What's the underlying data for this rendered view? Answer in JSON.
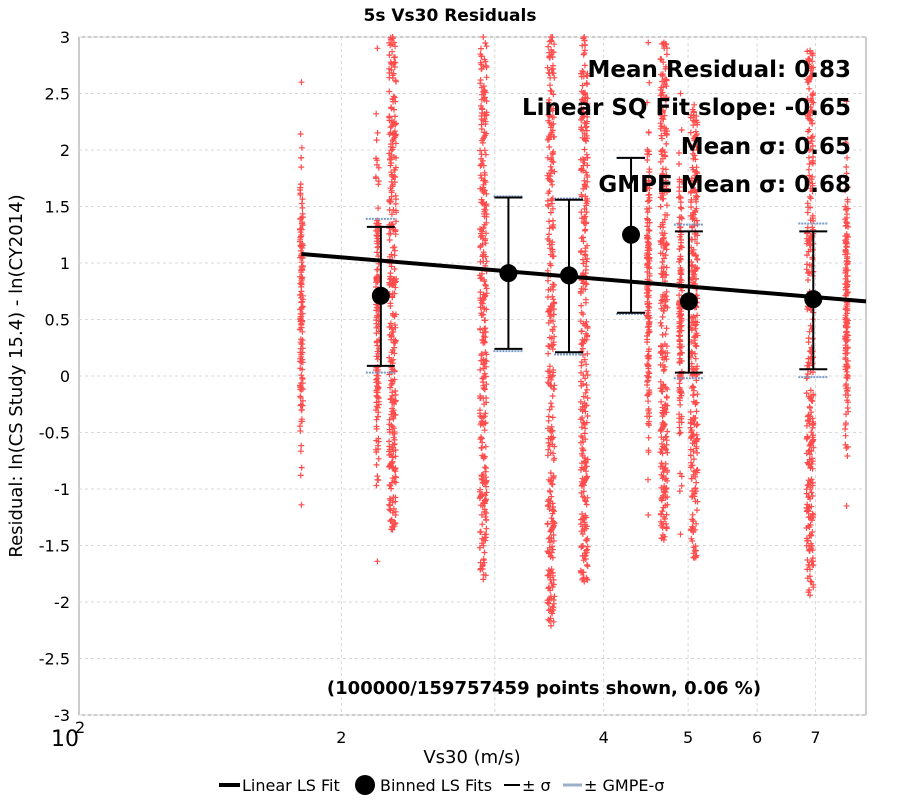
{
  "chart_data": {
    "type": "scatter",
    "title": "5s Vs30 Residuals",
    "xlabel": "Vs30 (m/s)",
    "ylabel": "Residual: ln(CS Study 15.4) - ln(CY2014)",
    "xscale": "log",
    "xlim": [
      100,
      800
    ],
    "ylim": [
      -3,
      3
    ],
    "grid": true,
    "x_major_tick": {
      "base": "10",
      "exponent": "2"
    },
    "x_minor_ticks": [
      {
        "label": "2",
        "value": 200
      },
      {
        "label": "",
        "value": 300
      },
      {
        "label": "4",
        "value": 400
      },
      {
        "label": "5",
        "value": 500
      },
      {
        "label": "6",
        "value": 600
      },
      {
        "label": "7",
        "value": 700
      }
    ],
    "y_ticks": [
      {
        "label": "3",
        "value": 3
      },
      {
        "label": "2.5",
        "value": 2.5
      },
      {
        "label": "2",
        "value": 2
      },
      {
        "label": "1.5",
        "value": 1.5
      },
      {
        "label": "1",
        "value": 1
      },
      {
        "label": "0.5",
        "value": 0.5
      },
      {
        "label": "0",
        "value": 0
      },
      {
        "label": "-0.5",
        "value": -0.5
      },
      {
        "label": "-1",
        "value": -1
      },
      {
        "label": "-1.5",
        "value": -1.5
      },
      {
        "label": "-2",
        "value": -2
      },
      {
        "label": "-2.5",
        "value": -2.5
      },
      {
        "label": "-3",
        "value": -3
      }
    ],
    "scatter_columns": [
      {
        "vs30": 180,
        "ymin": -1.14,
        "ymax": 2.6,
        "density": 0.35
      },
      {
        "vs30": 220,
        "ymin": -1.64,
        "ymax": 2.9,
        "density": 0.35
      },
      {
        "vs30": 229,
        "ymin": -1.36,
        "ymax": 3.0,
        "density": 1.0
      },
      {
        "vs30": 291,
        "ymin": -1.8,
        "ymax": 3.0,
        "density": 1.0
      },
      {
        "vs30": 348,
        "ymin": -2.21,
        "ymax": 3.0,
        "density": 1.0
      },
      {
        "vs30": 380,
        "ymin": -1.82,
        "ymax": 3.0,
        "density": 1.0
      },
      {
        "vs30": 450,
        "ymin": -1.23,
        "ymax": 2.95,
        "density": 0.4
      },
      {
        "vs30": 469,
        "ymin": -1.45,
        "ymax": 2.95,
        "density": 0.9
      },
      {
        "vs30": 490,
        "ymin": -1.4,
        "ymax": 2.5,
        "density": 0.4
      },
      {
        "vs30": 508,
        "ymin": -1.61,
        "ymax": 2.4,
        "density": 0.9
      },
      {
        "vs30": 690,
        "ymin": -1.94,
        "ymax": 2.88,
        "density": 1.0
      },
      {
        "vs30": 760,
        "ymin": -1.15,
        "ymax": 2.43,
        "density": 0.4
      }
    ],
    "series": [
      {
        "name": "Linear LS Fit",
        "type": "line",
        "points": [
          [
            180,
            1.08
          ],
          [
            800,
            0.66
          ]
        ]
      },
      {
        "name": "Binned LS Fits",
        "type": "points",
        "x": [
          222,
          311,
          365,
          430,
          501,
          696
        ],
        "y": [
          0.71,
          0.91,
          0.89,
          1.25,
          0.66,
          0.68
        ]
      },
      {
        "name": "± σ",
        "type": "errorbar",
        "x": [
          222,
          311,
          365,
          430,
          501,
          696
        ],
        "low": [
          0.09,
          0.24,
          0.21,
          0.56,
          0.03,
          0.06
        ],
        "high": [
          1.32,
          1.58,
          1.56,
          1.93,
          1.28,
          1.28
        ]
      },
      {
        "name": "± GMPE-σ",
        "type": "errorbar",
        "x": [
          222,
          311,
          365,
          430,
          501,
          696
        ],
        "low": [
          0.03,
          0.22,
          0.19,
          0.55,
          -0.02,
          -0.01
        ],
        "high": [
          1.39,
          1.59,
          1.57,
          1.93,
          1.34,
          1.35
        ]
      }
    ],
    "annotations": [
      "Mean Residual: 0.83",
      "Linear SQ Fit slope: -0.65",
      "Mean σ: 0.65",
      "GMPE Mean σ: 0.68"
    ],
    "note": "(100000/159757459 points shown, 0.06 %)",
    "legend": {
      "placement": "bottom",
      "entries": [
        "Linear LS Fit",
        "Binned LS Fits",
        "± σ",
        "± GMPE-σ"
      ]
    },
    "colors": {
      "scatter": "#ff4d4d",
      "fit": "#000000",
      "sigma": "#000000",
      "gmpe_sigma": "#7a9cc8",
      "grid": "#d8d8d8"
    }
  }
}
